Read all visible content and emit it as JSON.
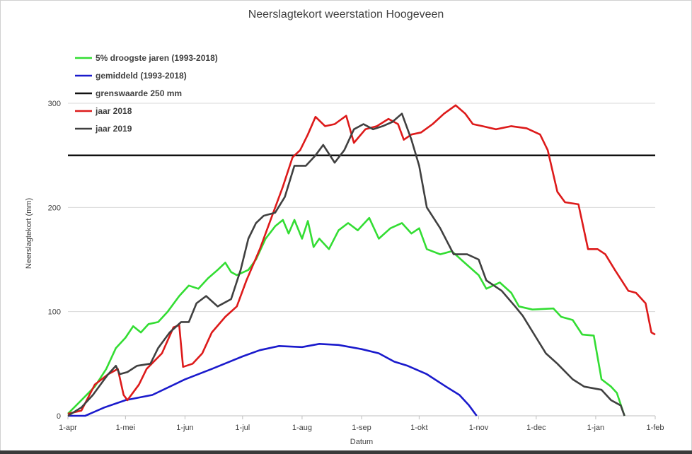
{
  "chart_data": {
    "type": "line",
    "title": "Neerslagtekort weerstation Hoogeveen",
    "xlabel": "Datum",
    "ylabel": "Neerslagtekort (mm)",
    "x_start": "2019-04-01",
    "x_end": "2020-02-01",
    "x_ticks": [
      "1-apr",
      "1-mei",
      "1-jun",
      "1-jul",
      "1-aug",
      "1-sep",
      "1-okt",
      "1-nov",
      "1-dec",
      "1-jan",
      "1-feb"
    ],
    "x_tick_dates": [
      "2019-04-01",
      "2019-05-01",
      "2019-06-01",
      "2019-07-01",
      "2019-08-01",
      "2019-09-01",
      "2019-10-01",
      "2019-11-01",
      "2019-12-01",
      "2020-01-01",
      "2020-02-01"
    ],
    "ylim": [
      0,
      300
    ],
    "y_ticks": [
      0,
      100,
      200,
      300
    ],
    "grid": true,
    "legend_position": "top-left",
    "series": [
      {
        "name": "5% droogste jaren (1993-2018)",
        "color": "#33dd33",
        "points": [
          [
            "2019-04-01",
            2
          ],
          [
            "2019-04-08",
            15
          ],
          [
            "2019-04-15",
            28
          ],
          [
            "2019-04-21",
            45
          ],
          [
            "2019-04-26",
            65
          ],
          [
            "2019-05-01",
            75
          ],
          [
            "2019-05-05",
            86
          ],
          [
            "2019-05-09",
            80
          ],
          [
            "2019-05-13",
            88
          ],
          [
            "2019-05-18",
            90
          ],
          [
            "2019-05-23",
            100
          ],
          [
            "2019-05-29",
            115
          ],
          [
            "2019-06-03",
            125
          ],
          [
            "2019-06-08",
            122
          ],
          [
            "2019-06-13",
            132
          ],
          [
            "2019-06-18",
            140
          ],
          [
            "2019-06-22",
            147
          ],
          [
            "2019-06-25",
            138
          ],
          [
            "2019-06-28",
            135
          ],
          [
            "2019-07-04",
            140
          ],
          [
            "2019-07-08",
            150
          ],
          [
            "2019-07-13",
            170
          ],
          [
            "2019-07-18",
            182
          ],
          [
            "2019-07-22",
            188
          ],
          [
            "2019-07-25",
            175
          ],
          [
            "2019-07-28",
            188
          ],
          [
            "2019-08-01",
            170
          ],
          [
            "2019-08-04",
            187
          ],
          [
            "2019-08-07",
            162
          ],
          [
            "2019-08-10",
            170
          ],
          [
            "2019-08-15",
            160
          ],
          [
            "2019-08-20",
            178
          ],
          [
            "2019-08-25",
            185
          ],
          [
            "2019-08-30",
            178
          ],
          [
            "2019-09-05",
            190
          ],
          [
            "2019-09-10",
            170
          ],
          [
            "2019-09-16",
            180
          ],
          [
            "2019-09-22",
            185
          ],
          [
            "2019-09-27",
            175
          ],
          [
            "2019-10-01",
            180
          ],
          [
            "2019-10-05",
            160
          ],
          [
            "2019-10-12",
            155
          ],
          [
            "2019-10-18",
            158
          ],
          [
            "2019-10-24",
            148
          ],
          [
            "2019-11-01",
            135
          ],
          [
            "2019-11-05",
            122
          ],
          [
            "2019-11-12",
            128
          ],
          [
            "2019-11-18",
            118
          ],
          [
            "2019-11-22",
            105
          ],
          [
            "2019-11-29",
            102
          ],
          [
            "2019-12-10",
            103
          ],
          [
            "2019-12-14",
            95
          ],
          [
            "2019-12-20",
            92
          ],
          [
            "2019-12-25",
            78
          ],
          [
            "2019-12-31",
            77
          ],
          [
            "2020-01-04",
            35
          ],
          [
            "2020-01-09",
            28
          ],
          [
            "2020-01-12",
            22
          ],
          [
            "2020-01-16",
            0
          ]
        ]
      },
      {
        "name": "gemiddeld (1993-2018)",
        "color": "#1a1acc",
        "points": [
          [
            "2019-04-01",
            0
          ],
          [
            "2019-04-10",
            0
          ],
          [
            "2019-04-20",
            8
          ],
          [
            "2019-05-01",
            15
          ],
          [
            "2019-05-15",
            20
          ],
          [
            "2019-06-01",
            35
          ],
          [
            "2019-06-15",
            45
          ],
          [
            "2019-07-01",
            57
          ],
          [
            "2019-07-10",
            63
          ],
          [
            "2019-07-20",
            67
          ],
          [
            "2019-08-01",
            66
          ],
          [
            "2019-08-10",
            69
          ],
          [
            "2019-08-20",
            68
          ],
          [
            "2019-09-01",
            64
          ],
          [
            "2019-09-10",
            60
          ],
          [
            "2019-09-18",
            52
          ],
          [
            "2019-09-25",
            48
          ],
          [
            "2019-10-05",
            40
          ],
          [
            "2019-10-15",
            28
          ],
          [
            "2019-10-22",
            20
          ],
          [
            "2019-10-27",
            10
          ],
          [
            "2019-10-31",
            0
          ]
        ]
      },
      {
        "name": "grenswaarde 250 mm",
        "color": "#111111",
        "points": [
          [
            "2019-04-01",
            250
          ],
          [
            "2020-02-01",
            250
          ]
        ]
      },
      {
        "name": "jaar 2018",
        "color": "#dd1a1a",
        "points": [
          [
            "2019-04-01",
            2
          ],
          [
            "2019-04-08",
            5
          ],
          [
            "2019-04-15",
            30
          ],
          [
            "2019-04-22",
            40
          ],
          [
            "2019-04-27",
            45
          ],
          [
            "2019-04-30",
            20
          ],
          [
            "2019-05-02",
            15
          ],
          [
            "2019-05-08",
            30
          ],
          [
            "2019-05-12",
            45
          ],
          [
            "2019-05-20",
            60
          ],
          [
            "2019-05-26",
            85
          ],
          [
            "2019-05-29",
            87
          ],
          [
            "2019-05-31",
            47
          ],
          [
            "2019-06-05",
            50
          ],
          [
            "2019-06-10",
            60
          ],
          [
            "2019-06-15",
            80
          ],
          [
            "2019-06-22",
            95
          ],
          [
            "2019-06-28",
            105
          ],
          [
            "2019-07-03",
            130
          ],
          [
            "2019-07-10",
            160
          ],
          [
            "2019-07-16",
            190
          ],
          [
            "2019-07-22",
            220
          ],
          [
            "2019-07-27",
            248
          ],
          [
            "2019-07-31",
            255
          ],
          [
            "2019-08-04",
            270
          ],
          [
            "2019-08-08",
            287
          ],
          [
            "2019-08-13",
            278
          ],
          [
            "2019-08-18",
            280
          ],
          [
            "2019-08-24",
            288
          ],
          [
            "2019-08-28",
            262
          ],
          [
            "2019-09-03",
            275
          ],
          [
            "2019-09-09",
            278
          ],
          [
            "2019-09-15",
            285
          ],
          [
            "2019-09-20",
            280
          ],
          [
            "2019-09-23",
            265
          ],
          [
            "2019-09-27",
            270
          ],
          [
            "2019-10-02",
            272
          ],
          [
            "2019-10-08",
            280
          ],
          [
            "2019-10-14",
            290
          ],
          [
            "2019-10-20",
            298
          ],
          [
            "2019-10-25",
            290
          ],
          [
            "2019-10-29",
            280
          ],
          [
            "2019-11-03",
            278
          ],
          [
            "2019-11-10",
            275
          ],
          [
            "2019-11-18",
            278
          ],
          [
            "2019-11-26",
            276
          ],
          [
            "2019-12-03",
            270
          ],
          [
            "2019-12-07",
            255
          ],
          [
            "2019-12-12",
            215
          ],
          [
            "2019-12-16",
            205
          ],
          [
            "2019-12-23",
            203
          ],
          [
            "2019-12-28",
            160
          ],
          [
            "2020-01-02",
            160
          ],
          [
            "2020-01-06",
            155
          ],
          [
            "2020-01-11",
            140
          ],
          [
            "2020-01-18",
            120
          ],
          [
            "2020-01-22",
            118
          ],
          [
            "2020-01-27",
            108
          ],
          [
            "2020-01-30",
            80
          ],
          [
            "2020-02-01",
            78
          ]
        ]
      },
      {
        "name": "jaar 2019",
        "color": "#404040",
        "points": [
          [
            "2019-04-01",
            0
          ],
          [
            "2019-04-08",
            8
          ],
          [
            "2019-04-14",
            20
          ],
          [
            "2019-04-20",
            35
          ],
          [
            "2019-04-22",
            40
          ],
          [
            "2019-04-26",
            48
          ],
          [
            "2019-04-28",
            40
          ],
          [
            "2019-05-02",
            42
          ],
          [
            "2019-05-07",
            48
          ],
          [
            "2019-05-14",
            50
          ],
          [
            "2019-05-18",
            65
          ],
          [
            "2019-05-24",
            80
          ],
          [
            "2019-05-30",
            90
          ],
          [
            "2019-06-03",
            90
          ],
          [
            "2019-06-07",
            108
          ],
          [
            "2019-06-12",
            115
          ],
          [
            "2019-06-18",
            105
          ],
          [
            "2019-06-25",
            112
          ],
          [
            "2019-06-30",
            140
          ],
          [
            "2019-07-04",
            170
          ],
          [
            "2019-07-08",
            185
          ],
          [
            "2019-07-12",
            192
          ],
          [
            "2019-07-18",
            195
          ],
          [
            "2019-07-23",
            210
          ],
          [
            "2019-07-28",
            240
          ],
          [
            "2019-08-03",
            240
          ],
          [
            "2019-08-08",
            250
          ],
          [
            "2019-08-12",
            260
          ],
          [
            "2019-08-18",
            243
          ],
          [
            "2019-08-23",
            255
          ],
          [
            "2019-08-28",
            275
          ],
          [
            "2019-09-02",
            280
          ],
          [
            "2019-09-07",
            275
          ],
          [
            "2019-09-12",
            278
          ],
          [
            "2019-09-17",
            282
          ],
          [
            "2019-09-22",
            290
          ],
          [
            "2019-09-27",
            265
          ],
          [
            "2019-10-01",
            240
          ],
          [
            "2019-10-05",
            200
          ],
          [
            "2019-10-12",
            180
          ],
          [
            "2019-10-19",
            155
          ],
          [
            "2019-10-26",
            155
          ],
          [
            "2019-11-01",
            150
          ],
          [
            "2019-11-05",
            130
          ],
          [
            "2019-11-13",
            120
          ],
          [
            "2019-11-20",
            105
          ],
          [
            "2019-11-24",
            96
          ],
          [
            "2019-12-01",
            75
          ],
          [
            "2019-12-06",
            60
          ],
          [
            "2019-12-12",
            50
          ],
          [
            "2019-12-20",
            35
          ],
          [
            "2019-12-26",
            28
          ],
          [
            "2020-01-04",
            25
          ],
          [
            "2020-01-09",
            15
          ],
          [
            "2020-01-14",
            10
          ],
          [
            "2020-01-16",
            0
          ]
        ]
      }
    ]
  }
}
